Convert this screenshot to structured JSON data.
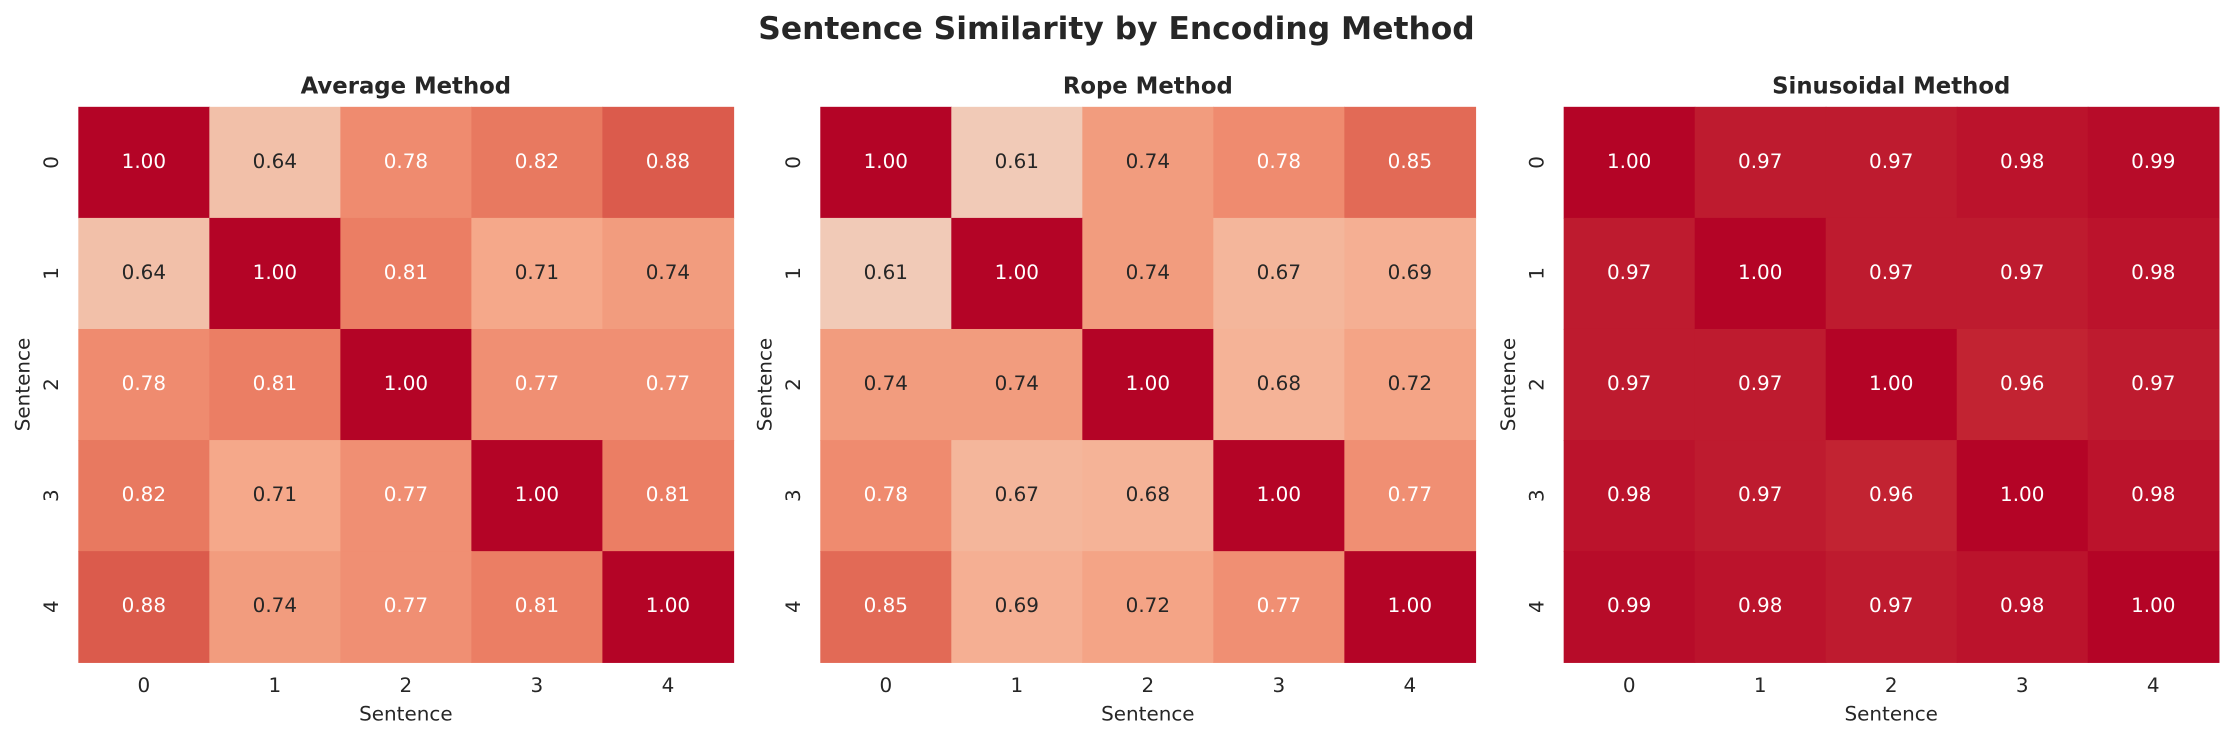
{
  "title": "Sentence Similarity by Encoding Method",
  "chart_data": [
    {
      "type": "heatmap",
      "title": "Average Method",
      "x_label": "Sentence",
      "y_label": "Sentence",
      "colormap": "coolwarm",
      "color_range": [
        0,
        1
      ],
      "x_categories": [
        0,
        1,
        2,
        3,
        4
      ],
      "y_categories": [
        0,
        1,
        2,
        3,
        4
      ],
      "values": [
        [
          1,
          0.64,
          0.78,
          0.82,
          0.88
        ],
        [
          0.64,
          1,
          0.81,
          0.71,
          0.74
        ],
        [
          0.78,
          0.81,
          1,
          0.77,
          0.77
        ],
        [
          0.82,
          0.71,
          0.77,
          1,
          0.81
        ],
        [
          0.88,
          0.74,
          0.77,
          0.81,
          1
        ]
      ],
      "value_labels": [
        [
          "1.00",
          "0.64",
          "0.78",
          "0.82",
          "0.88"
        ],
        [
          "0.64",
          "1.00",
          "0.81",
          "0.71",
          "0.74"
        ],
        [
          "0.78",
          "0.81",
          "1.00",
          "0.77",
          "0.77"
        ],
        [
          "0.82",
          "0.71",
          "0.77",
          "1.00",
          "0.81"
        ],
        [
          "0.88",
          "0.74",
          "0.77",
          "0.81",
          "1.00"
        ]
      ]
    },
    {
      "type": "heatmap",
      "title": "Rope Method",
      "x_label": "Sentence",
      "y_label": "Sentence",
      "colormap": "coolwarm",
      "color_range": [
        0,
        1
      ],
      "x_categories": [
        0,
        1,
        2,
        3,
        4
      ],
      "y_categories": [
        0,
        1,
        2,
        3,
        4
      ],
      "values": [
        [
          1,
          0.61,
          0.74,
          0.78,
          0.85
        ],
        [
          0.61,
          1,
          0.74,
          0.67,
          0.69
        ],
        [
          0.74,
          0.74,
          1,
          0.68,
          0.72
        ],
        [
          0.78,
          0.67,
          0.68,
          1,
          0.77
        ],
        [
          0.85,
          0.69,
          0.72,
          0.77,
          1
        ]
      ],
      "value_labels": [
        [
          "1.00",
          "0.61",
          "0.74",
          "0.78",
          "0.85"
        ],
        [
          "0.61",
          "1.00",
          "0.74",
          "0.67",
          "0.69"
        ],
        [
          "0.74",
          "0.74",
          "1.00",
          "0.68",
          "0.72"
        ],
        [
          "0.78",
          "0.67",
          "0.68",
          "1.00",
          "0.77"
        ],
        [
          "0.85",
          "0.69",
          "0.72",
          "0.77",
          "1.00"
        ]
      ]
    },
    {
      "type": "heatmap",
      "title": "Sinusoidal Method",
      "x_label": "Sentence",
      "y_label": "Sentence",
      "colormap": "coolwarm",
      "color_range": [
        0,
        1
      ],
      "x_categories": [
        0,
        1,
        2,
        3,
        4
      ],
      "y_categories": [
        0,
        1,
        2,
        3,
        4
      ],
      "values": [
        [
          1,
          0.97,
          0.97,
          0.98,
          0.99
        ],
        [
          0.97,
          1,
          0.97,
          0.97,
          0.98
        ],
        [
          0.97,
          0.97,
          1,
          0.96,
          0.97
        ],
        [
          0.98,
          0.97,
          0.96,
          1,
          0.98
        ],
        [
          0.99,
          0.98,
          0.97,
          0.98,
          1
        ]
      ],
      "value_labels": [
        [
          "1.00",
          "0.97",
          "0.97",
          "0.98",
          "0.99"
        ],
        [
          "0.97",
          "1.00",
          "0.97",
          "0.97",
          "0.98"
        ],
        [
          "0.97",
          "0.97",
          "1.00",
          "0.96",
          "0.97"
        ],
        [
          "0.98",
          "0.97",
          "0.96",
          "1.00",
          "0.98"
        ],
        [
          "0.99",
          "0.98",
          "0.97",
          "0.98",
          "1.00"
        ]
      ]
    }
  ]
}
